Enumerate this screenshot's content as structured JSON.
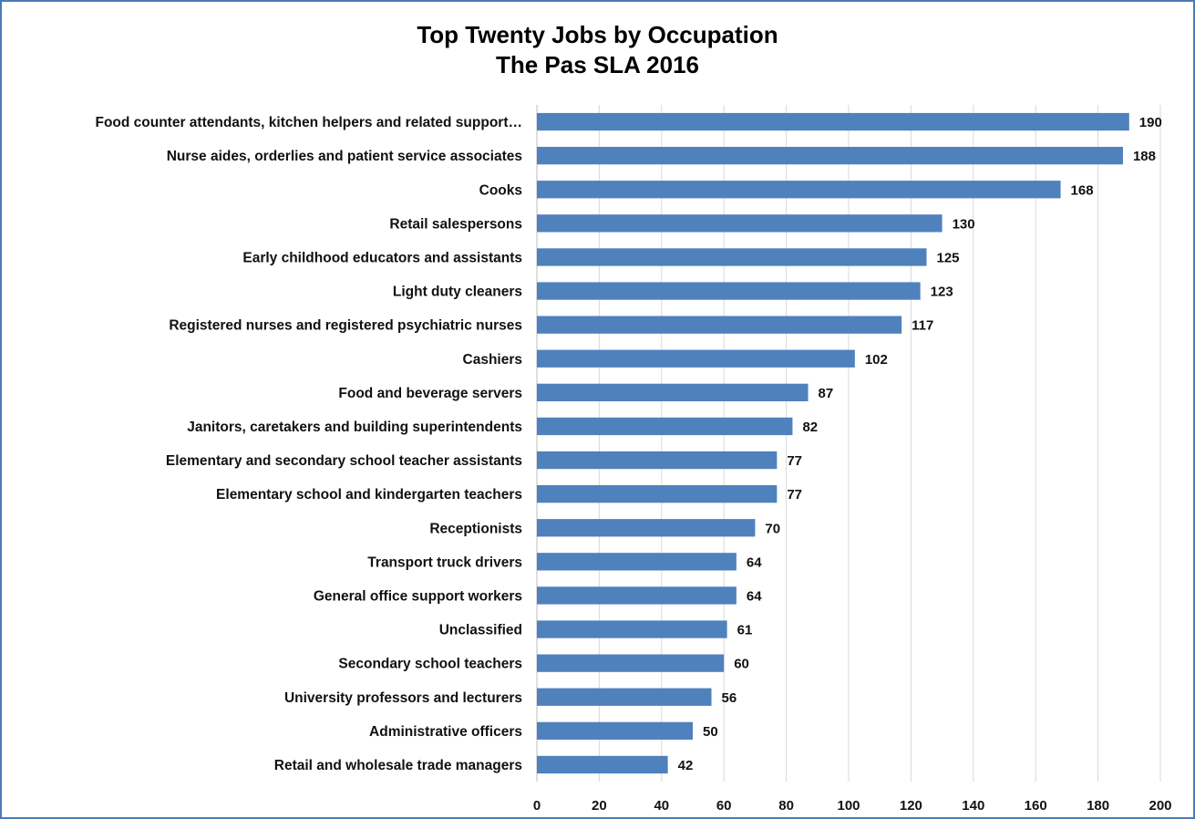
{
  "chart_data": {
    "type": "bar",
    "orientation": "horizontal",
    "title": "Top Twenty Jobs by Occupation",
    "subtitle": "The Pas SLA 2016",
    "xlabel": "",
    "ylabel": "",
    "xlim": [
      0,
      200
    ],
    "x_ticks": [
      0,
      20,
      40,
      60,
      80,
      100,
      120,
      140,
      160,
      180,
      200
    ],
    "grid": true,
    "legend": "none",
    "bar_color": "#4f81bd",
    "categories": [
      "Food counter attendants, kitchen helpers and related support…",
      "Nurse aides, orderlies and patient service associates",
      "Cooks",
      "Retail salespersons",
      "Early childhood educators and assistants",
      "Light duty cleaners",
      "Registered nurses and registered psychiatric nurses",
      "Cashiers",
      "Food and beverage servers",
      "Janitors, caretakers and building superintendents",
      "Elementary and secondary school teacher assistants",
      "Elementary school and kindergarten teachers",
      "Receptionists",
      "Transport truck drivers",
      "General office support workers",
      "Unclassified",
      "Secondary school teachers",
      "University professors and lecturers",
      "Administrative officers",
      "Retail and wholesale trade managers"
    ],
    "values": [
      190,
      188,
      168,
      130,
      125,
      123,
      117,
      102,
      87,
      82,
      77,
      77,
      70,
      64,
      64,
      61,
      60,
      56,
      50,
      42
    ]
  }
}
